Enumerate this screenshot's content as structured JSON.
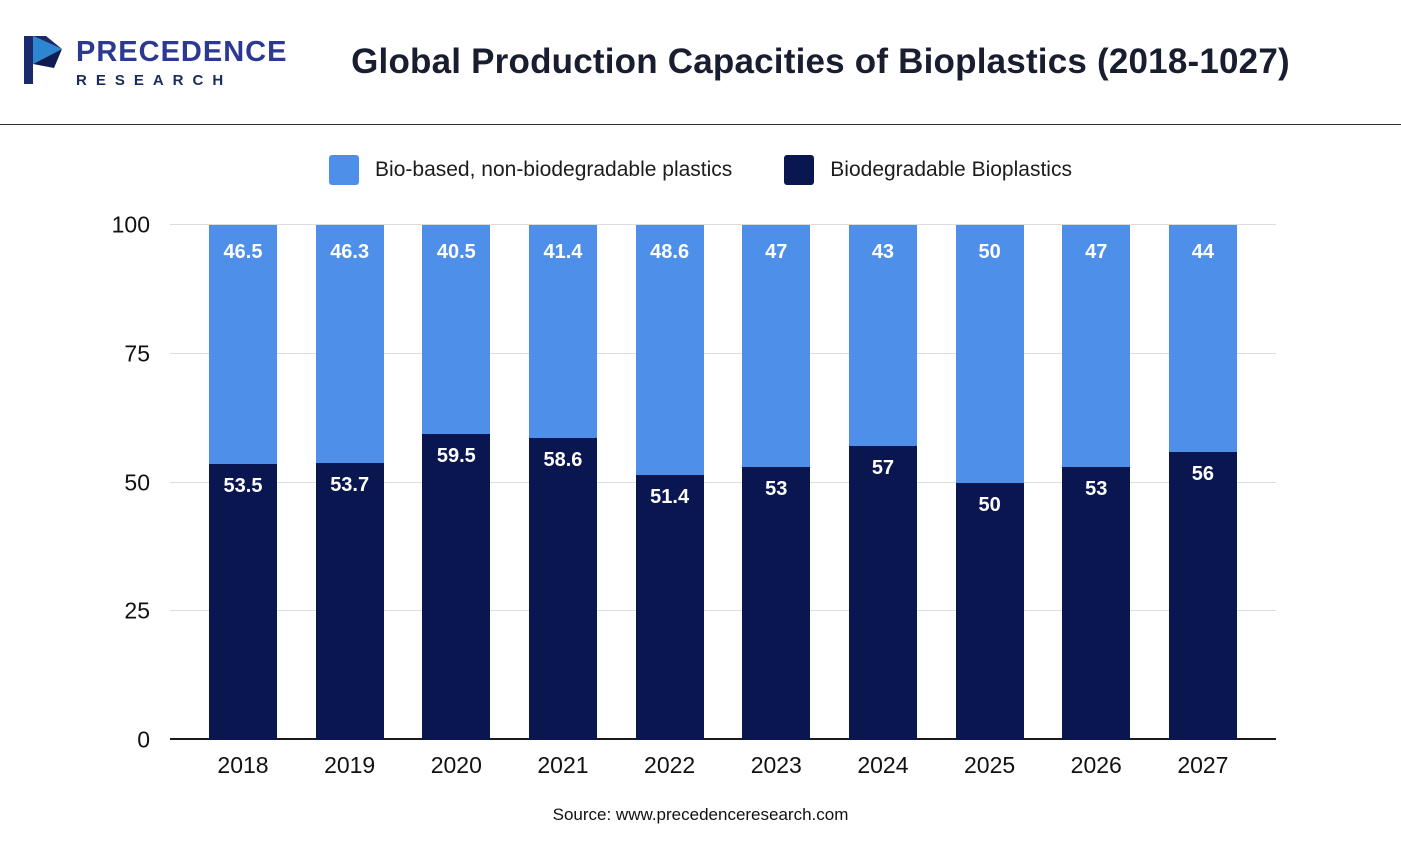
{
  "header": {
    "logo": {
      "line1": "PRECEDENCE",
      "line2": "RESEARCH"
    },
    "title": "Global Production Capacities of Bioplastics (2018-1027)"
  },
  "legend": {
    "items": [
      {
        "label": "Bio-based, non-biodegradable plastics",
        "color": "#4E8FE9"
      },
      {
        "label": "Biodegradable Bioplastics",
        "color": "#0A1650"
      }
    ]
  },
  "chart_data": {
    "type": "bar",
    "stacked": true,
    "title": "Global Production Capacities of Bioplastics (2018-1027)",
    "categories": [
      "2018",
      "2019",
      "2020",
      "2021",
      "2022",
      "2023",
      "2024",
      "2025",
      "2026",
      "2027"
    ],
    "series": [
      {
        "name": "Biodegradable Bioplastics",
        "color": "#0A1650",
        "values": [
          53.5,
          53.7,
          59.5,
          58.6,
          51.4,
          53,
          57,
          50,
          53,
          56
        ]
      },
      {
        "name": "Bio-based, non-biodegradable plastics",
        "color": "#4E8FE9",
        "values": [
          46.5,
          46.3,
          40.5,
          41.4,
          48.6,
          47,
          43,
          50,
          47,
          44
        ]
      }
    ],
    "ylim": [
      0,
      100
    ],
    "yticks": [
      0,
      25,
      50,
      75,
      100
    ],
    "grid": true,
    "legend_position": "top",
    "xlabel": "",
    "ylabel": ""
  },
  "footer": {
    "source": "Source: www.precedenceresearch.com"
  }
}
